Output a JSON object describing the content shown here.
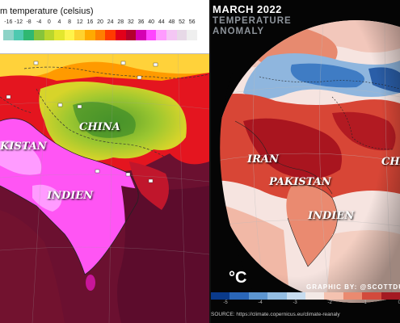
{
  "left_map": {
    "legend_title": "m temperature (celsius)",
    "legend_ticks": [
      "-16",
      "-12",
      "-8",
      "-4",
      "0",
      "4",
      "8",
      "12",
      "16",
      "20",
      "24",
      "28",
      "32",
      "36",
      "40",
      "44",
      "48",
      "52",
      "56"
    ],
    "legend_colors": [
      "#8dd3c7",
      "#4ec9b0",
      "#2fb872",
      "#86c43b",
      "#b9d62d",
      "#e3e72e",
      "#fff44a",
      "#ffd22e",
      "#ffaa00",
      "#ff7f00",
      "#ff3b00",
      "#e2001a",
      "#b3002c",
      "#d600b3",
      "#ff44ff",
      "#ff9bff",
      "#f4c6f4",
      "#e7d9e7",
      "#efefef"
    ],
    "labels": {
      "china": "CHINA",
      "pakistan": "KISTAN",
      "india": "INDIEN"
    }
  },
  "right_map": {
    "title": "MARCH 2022",
    "subtitle_line1": "TEMPERATURE",
    "subtitle_line2": "ANOMALY",
    "labels": {
      "iran": "IRAN",
      "pakistan": "PAKISTAN",
      "india": "INDIEN",
      "china": "CHI"
    },
    "unit": "°C",
    "credit": "GRAPHIC BY: @SCOTTDU",
    "source": "SOURCE: https://climate.copernicus.eu/climate-reanaly",
    "colorbar_ticks": [
      "-5",
      "-4",
      "-3",
      "-2",
      "-1",
      "0"
    ],
    "colorbar_colors": [
      "#0a3a8a",
      "#2a66b8",
      "#5c95d0",
      "#93bde3",
      "#c7dcef",
      "#f3e9e6",
      "#f4c2b0",
      "#ea8a70",
      "#d24a3c",
      "#a41a22"
    ]
  }
}
